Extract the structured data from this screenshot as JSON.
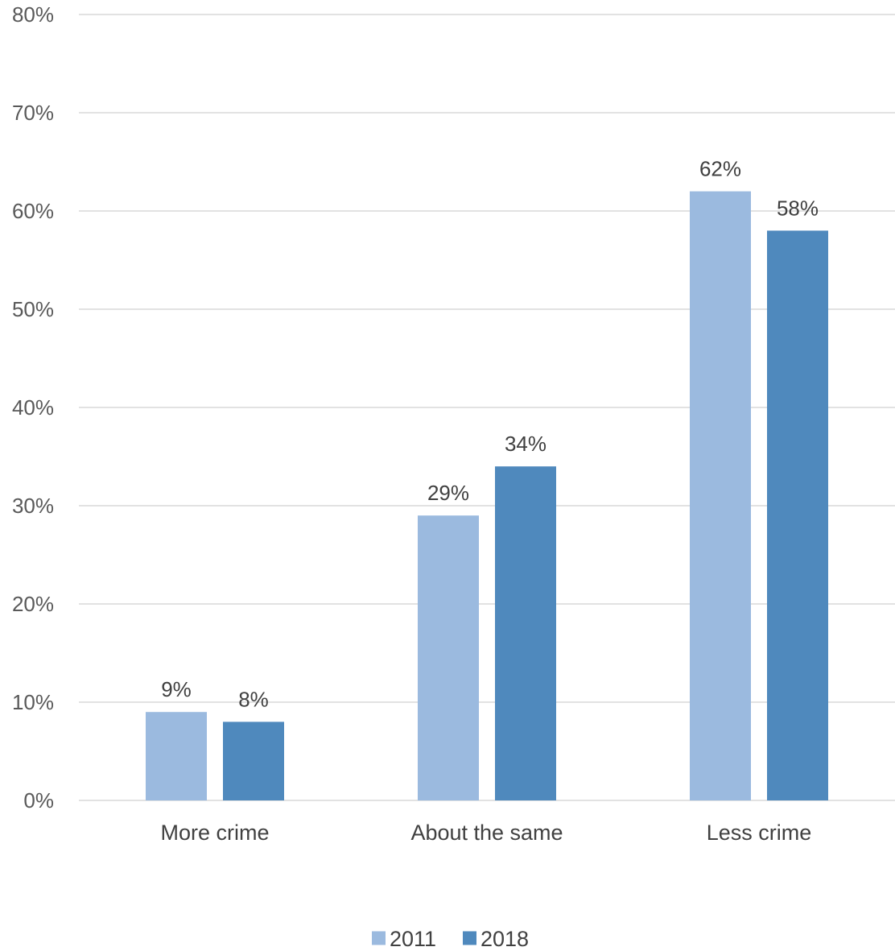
{
  "chart_data": {
    "type": "bar",
    "categories": [
      "More crime",
      "About the same",
      "Less crime"
    ],
    "series": [
      {
        "name": "2011",
        "values": [
          9,
          29,
          62
        ],
        "color": "#9BBADF"
      },
      {
        "name": "2018",
        "values": [
          8,
          34,
          58
        ],
        "color": "#4F89BD"
      }
    ],
    "data_labels": [
      [
        "9%",
        "29%",
        "62%"
      ],
      [
        "8%",
        "34%",
        "58%"
      ]
    ],
    "ylim": [
      0,
      80
    ],
    "yticks": [
      0,
      10,
      20,
      30,
      40,
      50,
      60,
      70,
      80
    ],
    "ytick_labels": [
      "0%",
      "10%",
      "20%",
      "30%",
      "40%",
      "50%",
      "60%",
      "70%",
      "80%"
    ],
    "grid": true,
    "legend_position": "bottom-center",
    "title": "",
    "xlabel": "",
    "ylabel": ""
  }
}
